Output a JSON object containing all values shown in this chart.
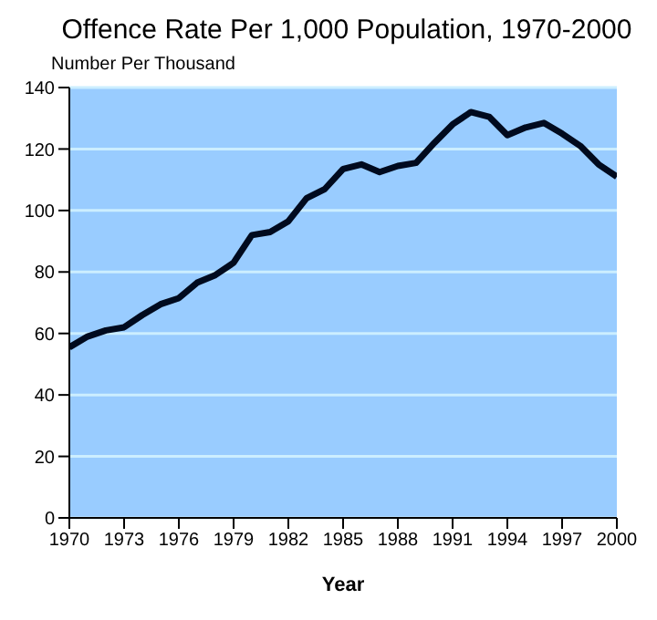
{
  "chart_data": {
    "type": "line",
    "title": "Offence Rate Per 1,000 Population, 1970-2000",
    "ylabel": "Number Per Thousand",
    "xlabel": "Year",
    "x": [
      1970,
      1971,
      1972,
      1973,
      1974,
      1975,
      1976,
      1977,
      1978,
      1979,
      1980,
      1981,
      1982,
      1983,
      1984,
      1985,
      1986,
      1987,
      1988,
      1989,
      1990,
      1991,
      1992,
      1993,
      1994,
      1995,
      1996,
      1997,
      1998,
      1999,
      2000
    ],
    "series": [
      {
        "color": "#000a1e",
        "values": [
          55.5,
          59,
          61,
          62,
          66,
          69.5,
          71.5,
          76.5,
          79,
          83,
          92,
          93,
          96.5,
          104,
          107,
          113.5,
          115,
          112.5,
          114.5,
          115.5,
          122,
          128,
          132,
          130.5,
          124.5,
          127,
          128.5,
          125,
          121,
          115,
          111
        ]
      }
    ],
    "xlim": [
      1970,
      2000
    ],
    "xticks": [
      1970,
      1973,
      1976,
      1979,
      1982,
      1985,
      1988,
      1991,
      1994,
      1997,
      2000
    ],
    "ylim": [
      0,
      140
    ],
    "yticks": [
      0,
      20,
      40,
      60,
      80,
      100,
      120,
      140
    ],
    "grid": "y",
    "marker": "none",
    "line_style": "solid"
  }
}
